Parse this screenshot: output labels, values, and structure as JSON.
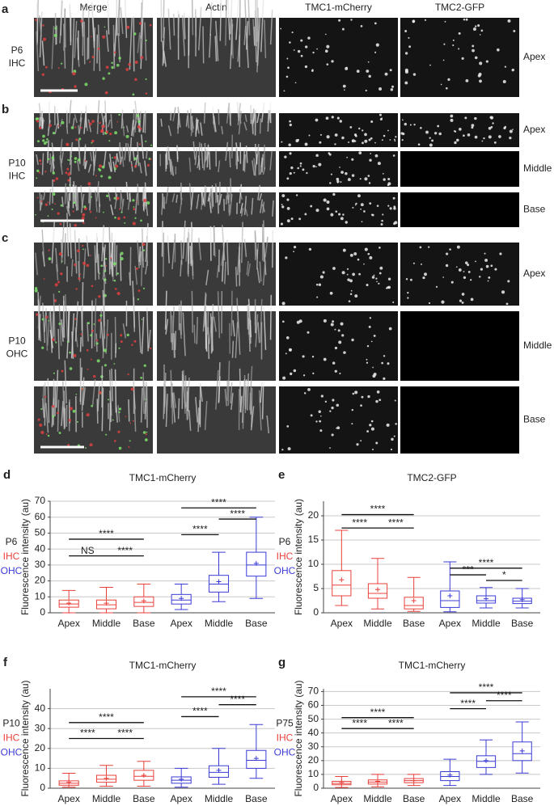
{
  "figure": {
    "columns": [
      "Merge",
      "Actin",
      "TMC1-mCherry",
      "TMC2-GFP"
    ],
    "panels": [
      {
        "letter": "a",
        "age": "P6",
        "cell": "IHC",
        "rows": [
          "Apex"
        ]
      },
      {
        "letter": "b",
        "age": "P10",
        "cell": "IHC",
        "rows": [
          "Apex",
          "Middle",
          "Base"
        ]
      },
      {
        "letter": "c",
        "age": "P10",
        "cell": "OHC",
        "rows": [
          "Apex",
          "Middle",
          "Base"
        ]
      }
    ]
  },
  "chart_data": [
    {
      "type": "box",
      "panel_label": "d",
      "title": "TMC1-mCherry",
      "y_label": "Fluorescence intensity (au)",
      "age": "P6",
      "categories": [
        "Apex",
        "Middle",
        "Base",
        "Apex",
        "Middle",
        "Base"
      ],
      "ylim": [
        0,
        70
      ],
      "yticks": [
        0,
        10,
        20,
        30,
        40,
        50,
        60,
        70
      ],
      "grid": true,
      "series": [
        {
          "name": "IHC",
          "color": "#e8413c",
          "boxes": [
            {
              "whisker_low": 0,
              "q1": 3.5,
              "median": 5.5,
              "q3": 8,
              "whisker_high": 14,
              "mean": 6
            },
            {
              "whisker_low": 0,
              "q1": 2.5,
              "median": 5,
              "q3": 8,
              "whisker_high": 16,
              "mean": 6
            },
            {
              "whisker_low": 0,
              "q1": 4,
              "median": 6.5,
              "q3": 10,
              "whisker_high": 18,
              "mean": 7.5
            }
          ]
        },
        {
          "name": "OHC",
          "color": "#3b3bd6",
          "boxes": [
            {
              "whisker_low": 2,
              "q1": 5.5,
              "median": 8,
              "q3": 11.5,
              "whisker_high": 18,
              "mean": 9
            },
            {
              "whisker_low": 7,
              "q1": 13,
              "median": 18,
              "q3": 23.5,
              "whisker_high": 38,
              "mean": 19.5
            },
            {
              "whisker_low": 9,
              "q1": 23,
              "median": 30,
              "q3": 38,
              "whisker_high": 60,
              "mean": 31
            }
          ]
        }
      ],
      "annotations": [
        {
          "text": "NS",
          "from": 0,
          "to": 1
        },
        {
          "text": "****",
          "from": 1,
          "to": 2
        },
        {
          "text": "****",
          "from": 0,
          "to": 2
        },
        {
          "text": "****",
          "from": 3,
          "to": 4
        },
        {
          "text": "****",
          "from": 4,
          "to": 5
        },
        {
          "text": "****",
          "from": 3,
          "to": 5
        }
      ]
    },
    {
      "type": "box",
      "panel_label": "e",
      "title": "TMC2-GFP",
      "y_label": "Fluorescence intensity (au)",
      "age": "P6",
      "categories": [
        "Apex",
        "Middle",
        "Base",
        "Apex",
        "Middle",
        "Base"
      ],
      "ylim": [
        0,
        23
      ],
      "yticks": [
        0,
        5,
        10,
        15,
        20
      ],
      "grid": true,
      "series": [
        {
          "name": "IHC",
          "color": "#e8413c",
          "boxes": [
            {
              "whisker_low": 1.5,
              "q1": 3.5,
              "median": 5.7,
              "q3": 8.7,
              "whisker_high": 17,
              "mean": 6.8
            },
            {
              "whisker_low": 0.8,
              "q1": 3,
              "median": 4,
              "q3": 6,
              "whisker_high": 11.2,
              "mean": 4.8
            },
            {
              "whisker_low": 0.3,
              "q1": 0.8,
              "median": 1.5,
              "q3": 3.2,
              "whisker_high": 7.3,
              "mean": 2.5
            }
          ]
        },
        {
          "name": "OHC",
          "color": "#3b3bd6",
          "boxes": [
            {
              "whisker_low": 0.2,
              "q1": 1.1,
              "median": 2.5,
              "q3": 4.5,
              "whisker_high": 10.5,
              "mean": 3.5
            },
            {
              "whisker_low": 1,
              "q1": 2,
              "median": 2.5,
              "q3": 3.5,
              "whisker_high": 5.2,
              "mean": 2.9
            },
            {
              "whisker_low": 1,
              "q1": 1.9,
              "median": 2.4,
              "q3": 3,
              "whisker_high": 5,
              "mean": 2.7
            }
          ]
        }
      ],
      "annotations": [
        {
          "text": "****",
          "from": 0,
          "to": 1
        },
        {
          "text": "****",
          "from": 1,
          "to": 2
        },
        {
          "text": "****",
          "from": 0,
          "to": 2
        },
        {
          "text": "***",
          "from": 3,
          "to": 4
        },
        {
          "text": "*",
          "from": 4,
          "to": 5
        },
        {
          "text": "****",
          "from": 3,
          "to": 5
        }
      ]
    },
    {
      "type": "box",
      "panel_label": "f",
      "title": "TMC1-mCherry",
      "y_label": "Fluorescence intensity (au)",
      "age": "P10",
      "categories": [
        "Apex",
        "Middle",
        "Base",
        "Apex",
        "Middle",
        "Base"
      ],
      "ylim": [
        0,
        50
      ],
      "yticks": [
        0,
        10,
        20,
        30,
        40
      ],
      "grid": true,
      "series": [
        {
          "name": "IHC",
          "color": "#e8413c",
          "boxes": [
            {
              "whisker_low": 0.5,
              "q1": 1.5,
              "median": 2.5,
              "q3": 3.7,
              "whisker_high": 7.5,
              "mean": 3
            },
            {
              "whisker_low": 1,
              "q1": 3,
              "median": 4.5,
              "q3": 6.5,
              "whisker_high": 11.5,
              "mean": 5
            },
            {
              "whisker_low": 1,
              "q1": 4,
              "median": 6,
              "q3": 9,
              "whisker_high": 13.5,
              "mean": 6.5
            }
          ]
        },
        {
          "name": "OHC",
          "color": "#3b3bd6",
          "boxes": [
            {
              "whisker_low": 0.5,
              "q1": 2.5,
              "median": 4,
              "q3": 5.7,
              "whisker_high": 10,
              "mean": 4.5
            },
            {
              "whisker_low": 2,
              "q1": 5.5,
              "median": 8,
              "q3": 11.3,
              "whisker_high": 20,
              "mean": 9
            },
            {
              "whisker_low": 5,
              "q1": 10,
              "median": 14,
              "q3": 19,
              "whisker_high": 32,
              "mean": 15
            }
          ]
        }
      ],
      "annotations": [
        {
          "text": "****",
          "from": 0,
          "to": 1
        },
        {
          "text": "****",
          "from": 1,
          "to": 2
        },
        {
          "text": "****",
          "from": 0,
          "to": 2
        },
        {
          "text": "****",
          "from": 3,
          "to": 4
        },
        {
          "text": "****",
          "from": 4,
          "to": 5
        },
        {
          "text": "****",
          "from": 3,
          "to": 5
        }
      ]
    },
    {
      "type": "box",
      "panel_label": "g",
      "title": "TMC1-mCherry",
      "y_label": "Fluorescence intensity (au)",
      "age": "P75",
      "categories": [
        "Apex",
        "Middle",
        "Base",
        "Apex",
        "Middle",
        "Base"
      ],
      "ylim": [
        0,
        72
      ],
      "yticks": [
        0,
        10,
        20,
        30,
        40,
        50,
        60,
        70
      ],
      "grid": true,
      "series": [
        {
          "name": "IHC",
          "color": "#e8413c",
          "boxes": [
            {
              "whisker_low": 0.5,
              "q1": 2.5,
              "median": 3.5,
              "q3": 5,
              "whisker_high": 8.5,
              "mean": 4
            },
            {
              "whisker_low": 1,
              "q1": 3,
              "median": 4.5,
              "q3": 6,
              "whisker_high": 10,
              "mean": 5
            },
            {
              "whisker_low": 2,
              "q1": 4,
              "median": 5.5,
              "q3": 7,
              "whisker_high": 10,
              "mean": 5.5
            }
          ]
        },
        {
          "name": "OHC",
          "color": "#3b3bd6",
          "boxes": [
            {
              "whisker_low": 2,
              "q1": 5.5,
              "median": 8.5,
              "q3": 12,
              "whisker_high": 21,
              "mean": 9.5
            },
            {
              "whisker_low": 10,
              "q1": 15,
              "median": 19.5,
              "q3": 23.5,
              "whisker_high": 35,
              "mean": 20
            },
            {
              "whisker_low": 11,
              "q1": 20,
              "median": 25,
              "q3": 33.5,
              "whisker_high": 48,
              "mean": 27
            }
          ]
        }
      ],
      "annotations": [
        {
          "text": "****",
          "from": 0,
          "to": 1
        },
        {
          "text": "****",
          "from": 1,
          "to": 2
        },
        {
          "text": "****",
          "from": 0,
          "to": 2
        },
        {
          "text": "****",
          "from": 3,
          "to": 4
        },
        {
          "text": "****",
          "from": 4,
          "to": 5
        },
        {
          "text": "****",
          "from": 3,
          "to": 5
        }
      ]
    }
  ]
}
